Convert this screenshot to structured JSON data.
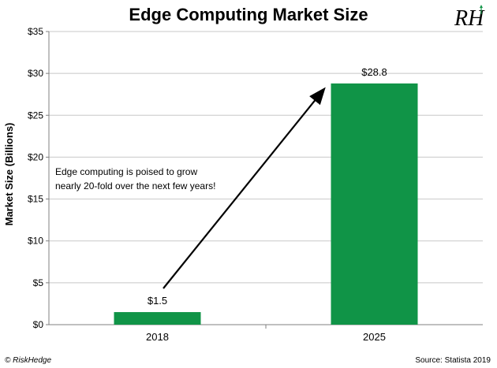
{
  "chart_data": {
    "type": "bar",
    "title": "Edge Computing Market Size",
    "ylabel": "Market Size (Billions)",
    "xlabel": "",
    "categories": [
      "2018",
      "2025"
    ],
    "values": [
      1.5,
      28.8
    ],
    "value_labels": [
      "$1.5",
      "$28.8"
    ],
    "ylim": [
      0,
      35
    ],
    "yticks": [
      0,
      5,
      10,
      15,
      20,
      25,
      30,
      35
    ],
    "ytick_labels": [
      "$0",
      "$5",
      "$10",
      "$15",
      "$20",
      "$25",
      "$30",
      "$35"
    ],
    "grid": true,
    "bar_color": "#109447",
    "annotation": {
      "lines": [
        "Edge computing is poised to grow",
        "nearly 20-fold over the next few years!"
      ]
    }
  },
  "logo": {
    "text": "RH",
    "accent_color": "#109447"
  },
  "footer": {
    "copyright": "© RiskHedge",
    "source": "Source: Statista 2019"
  }
}
